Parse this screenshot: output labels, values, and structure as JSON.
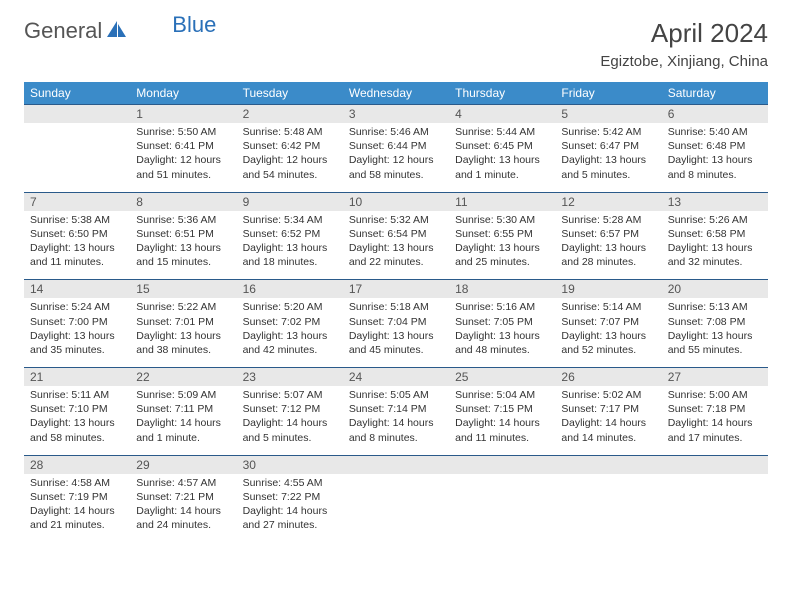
{
  "logo": {
    "text1": "General",
    "text2": "Blue"
  },
  "title": "April 2024",
  "location": "Egiztobe, Xinjiang, China",
  "weekdays": [
    "Sunday",
    "Monday",
    "Tuesday",
    "Wednesday",
    "Thursday",
    "Friday",
    "Saturday"
  ],
  "colors": {
    "header_bg": "#3b8bc9",
    "header_text": "#ffffff",
    "daynum_bg": "#e8e8e8",
    "border": "#2a5a8a",
    "logo_gray": "#555555",
    "logo_blue": "#2a70b8"
  },
  "weeks": [
    [
      {
        "n": "",
        "lines": []
      },
      {
        "n": "1",
        "lines": [
          "Sunrise: 5:50 AM",
          "Sunset: 6:41 PM",
          "Daylight: 12 hours",
          "and 51 minutes."
        ]
      },
      {
        "n": "2",
        "lines": [
          "Sunrise: 5:48 AM",
          "Sunset: 6:42 PM",
          "Daylight: 12 hours",
          "and 54 minutes."
        ]
      },
      {
        "n": "3",
        "lines": [
          "Sunrise: 5:46 AM",
          "Sunset: 6:44 PM",
          "Daylight: 12 hours",
          "and 58 minutes."
        ]
      },
      {
        "n": "4",
        "lines": [
          "Sunrise: 5:44 AM",
          "Sunset: 6:45 PM",
          "Daylight: 13 hours",
          "and 1 minute."
        ]
      },
      {
        "n": "5",
        "lines": [
          "Sunrise: 5:42 AM",
          "Sunset: 6:47 PM",
          "Daylight: 13 hours",
          "and 5 minutes."
        ]
      },
      {
        "n": "6",
        "lines": [
          "Sunrise: 5:40 AM",
          "Sunset: 6:48 PM",
          "Daylight: 13 hours",
          "and 8 minutes."
        ]
      }
    ],
    [
      {
        "n": "7",
        "lines": [
          "Sunrise: 5:38 AM",
          "Sunset: 6:50 PM",
          "Daylight: 13 hours",
          "and 11 minutes."
        ]
      },
      {
        "n": "8",
        "lines": [
          "Sunrise: 5:36 AM",
          "Sunset: 6:51 PM",
          "Daylight: 13 hours",
          "and 15 minutes."
        ]
      },
      {
        "n": "9",
        "lines": [
          "Sunrise: 5:34 AM",
          "Sunset: 6:52 PM",
          "Daylight: 13 hours",
          "and 18 minutes."
        ]
      },
      {
        "n": "10",
        "lines": [
          "Sunrise: 5:32 AM",
          "Sunset: 6:54 PM",
          "Daylight: 13 hours",
          "and 22 minutes."
        ]
      },
      {
        "n": "11",
        "lines": [
          "Sunrise: 5:30 AM",
          "Sunset: 6:55 PM",
          "Daylight: 13 hours",
          "and 25 minutes."
        ]
      },
      {
        "n": "12",
        "lines": [
          "Sunrise: 5:28 AM",
          "Sunset: 6:57 PM",
          "Daylight: 13 hours",
          "and 28 minutes."
        ]
      },
      {
        "n": "13",
        "lines": [
          "Sunrise: 5:26 AM",
          "Sunset: 6:58 PM",
          "Daylight: 13 hours",
          "and 32 minutes."
        ]
      }
    ],
    [
      {
        "n": "14",
        "lines": [
          "Sunrise: 5:24 AM",
          "Sunset: 7:00 PM",
          "Daylight: 13 hours",
          "and 35 minutes."
        ]
      },
      {
        "n": "15",
        "lines": [
          "Sunrise: 5:22 AM",
          "Sunset: 7:01 PM",
          "Daylight: 13 hours",
          "and 38 minutes."
        ]
      },
      {
        "n": "16",
        "lines": [
          "Sunrise: 5:20 AM",
          "Sunset: 7:02 PM",
          "Daylight: 13 hours",
          "and 42 minutes."
        ]
      },
      {
        "n": "17",
        "lines": [
          "Sunrise: 5:18 AM",
          "Sunset: 7:04 PM",
          "Daylight: 13 hours",
          "and 45 minutes."
        ]
      },
      {
        "n": "18",
        "lines": [
          "Sunrise: 5:16 AM",
          "Sunset: 7:05 PM",
          "Daylight: 13 hours",
          "and 48 minutes."
        ]
      },
      {
        "n": "19",
        "lines": [
          "Sunrise: 5:14 AM",
          "Sunset: 7:07 PM",
          "Daylight: 13 hours",
          "and 52 minutes."
        ]
      },
      {
        "n": "20",
        "lines": [
          "Sunrise: 5:13 AM",
          "Sunset: 7:08 PM",
          "Daylight: 13 hours",
          "and 55 minutes."
        ]
      }
    ],
    [
      {
        "n": "21",
        "lines": [
          "Sunrise: 5:11 AM",
          "Sunset: 7:10 PM",
          "Daylight: 13 hours",
          "and 58 minutes."
        ]
      },
      {
        "n": "22",
        "lines": [
          "Sunrise: 5:09 AM",
          "Sunset: 7:11 PM",
          "Daylight: 14 hours",
          "and 1 minute."
        ]
      },
      {
        "n": "23",
        "lines": [
          "Sunrise: 5:07 AM",
          "Sunset: 7:12 PM",
          "Daylight: 14 hours",
          "and 5 minutes."
        ]
      },
      {
        "n": "24",
        "lines": [
          "Sunrise: 5:05 AM",
          "Sunset: 7:14 PM",
          "Daylight: 14 hours",
          "and 8 minutes."
        ]
      },
      {
        "n": "25",
        "lines": [
          "Sunrise: 5:04 AM",
          "Sunset: 7:15 PM",
          "Daylight: 14 hours",
          "and 11 minutes."
        ]
      },
      {
        "n": "26",
        "lines": [
          "Sunrise: 5:02 AM",
          "Sunset: 7:17 PM",
          "Daylight: 14 hours",
          "and 14 minutes."
        ]
      },
      {
        "n": "27",
        "lines": [
          "Sunrise: 5:00 AM",
          "Sunset: 7:18 PM",
          "Daylight: 14 hours",
          "and 17 minutes."
        ]
      }
    ],
    [
      {
        "n": "28",
        "lines": [
          "Sunrise: 4:58 AM",
          "Sunset: 7:19 PM",
          "Daylight: 14 hours",
          "and 21 minutes."
        ]
      },
      {
        "n": "29",
        "lines": [
          "Sunrise: 4:57 AM",
          "Sunset: 7:21 PM",
          "Daylight: 14 hours",
          "and 24 minutes."
        ]
      },
      {
        "n": "30",
        "lines": [
          "Sunrise: 4:55 AM",
          "Sunset: 7:22 PM",
          "Daylight: 14 hours",
          "and 27 minutes."
        ]
      },
      {
        "n": "",
        "lines": []
      },
      {
        "n": "",
        "lines": []
      },
      {
        "n": "",
        "lines": []
      },
      {
        "n": "",
        "lines": []
      }
    ]
  ]
}
